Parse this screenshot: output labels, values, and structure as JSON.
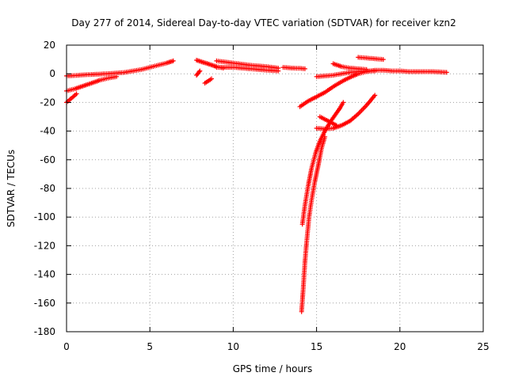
{
  "chart_data": {
    "type": "scatter",
    "title": "Day 277 of 2014, Sidereal Day-to-day VTEC variation (SDTVAR) for receiver kzn2",
    "xlabel": "GPS time / hours",
    "ylabel": "SDTVAR / TECUs",
    "xlim": [
      0,
      25
    ],
    "ylim": [
      -180,
      20
    ],
    "xticks": [
      0,
      5,
      10,
      15,
      20,
      25
    ],
    "xtick_labels": [
      "0",
      "5",
      "10",
      "15",
      "20",
      "25"
    ],
    "yticks": [
      20,
      0,
      -20,
      -40,
      -60,
      -80,
      -100,
      -120,
      -140,
      -160,
      -180
    ],
    "ytick_labels": [
      "20",
      "0",
      "-20",
      "-40",
      "-60",
      "-80",
      "-100",
      "-120",
      "-140",
      "-160",
      "-180"
    ],
    "grid": true,
    "marker": "+",
    "color": "#ff0000",
    "tracks": [
      {
        "x": [
          0.0,
          0.5,
          1.0,
          1.5,
          2.0,
          2.5,
          3.0,
          3.5,
          4.0,
          4.5,
          5.0,
          5.5,
          6.0,
          6.4
        ],
        "y": [
          -1.5,
          -1.2,
          -0.8,
          -0.5,
          -0.2,
          0.1,
          0.5,
          1.0,
          2.0,
          3.0,
          4.5,
          6.0,
          7.5,
          9.0
        ]
      },
      {
        "x": [
          0.0,
          0.5,
          1.0,
          1.5,
          2.0,
          2.5,
          3.0
        ],
        "y": [
          -12.0,
          -10.5,
          -8.5,
          -6.5,
          -4.5,
          -3.0,
          -2.0
        ]
      },
      {
        "x": [
          0.0,
          0.3,
          0.6
        ],
        "y": [
          -20.0,
          -17.0,
          -14.0
        ]
      },
      {
        "x": [
          7.8,
          8.2,
          8.6,
          9.0,
          9.4
        ],
        "y": [
          9.5,
          8.0,
          6.5,
          5.0,
          4.0
        ]
      },
      {
        "x": [
          7.8,
          8.0
        ],
        "y": [
          -1.0,
          2.0
        ]
      },
      {
        "x": [
          8.3,
          8.7
        ],
        "y": [
          -6.5,
          -3.5
        ]
      },
      {
        "x": [
          9.0,
          10.0,
          11.0,
          12.0,
          12.7
        ],
        "y": [
          9.0,
          7.5,
          6.0,
          5.0,
          4.0
        ]
      },
      {
        "x": [
          9.0,
          10.0,
          11.0,
          12.0,
          12.7
        ],
        "y": [
          4.5,
          4.5,
          3.5,
          2.5,
          2.0
        ]
      },
      {
        "x": [
          13.0,
          13.5,
          14.0,
          14.3
        ],
        "y": [
          4.5,
          4.0,
          3.8,
          3.5
        ]
      },
      {
        "x": [
          14.0,
          14.5,
          15.0,
          15.5,
          16.0,
          16.5,
          17.0,
          17.5,
          18.0,
          18.5,
          19.0,
          19.5,
          20.0,
          20.5,
          21.0,
          21.5,
          22.0,
          22.5,
          22.8
        ],
        "y": [
          -23.0,
          -19.0,
          -16.0,
          -13.0,
          -9.0,
          -5.5,
          -2.5,
          0.0,
          1.5,
          2.5,
          2.5,
          2.0,
          2.0,
          1.5,
          1.5,
          1.5,
          1.5,
          1.2,
          1.0
        ]
      },
      {
        "x": [
          15.0,
          15.5,
          16.0,
          16.5,
          17.0,
          17.5,
          18.0,
          18.5
        ],
        "y": [
          -2.0,
          -1.5,
          -1.0,
          0.0,
          1.0,
          1.5,
          2.0,
          2.0
        ]
      },
      {
        "x": [
          16.0,
          16.5,
          17.0,
          17.5,
          18.0
        ],
        "y": [
          7.0,
          5.0,
          4.0,
          3.5,
          3.0
        ]
      },
      {
        "x": [
          17.5,
          18.0,
          18.5,
          19.0
        ],
        "y": [
          11.5,
          11.0,
          10.5,
          10.0
        ]
      },
      {
        "x": [
          15.0,
          15.5,
          16.0,
          16.5,
          17.0,
          17.5,
          18.0,
          18.5
        ],
        "y": [
          -38.0,
          -38.5,
          -38.0,
          -36.0,
          -33.0,
          -28.0,
          -22.0,
          -15.0
        ]
      },
      {
        "x": [
          15.2,
          15.7,
          16.2
        ],
        "y": [
          -30.0,
          -33.0,
          -36.0
        ]
      },
      {
        "x": [
          14.15,
          14.3,
          14.5,
          14.7,
          14.95,
          15.2,
          15.5,
          15.8,
          16.1,
          16.4,
          16.6
        ],
        "y": [
          -105.0,
          -92.0,
          -78.0,
          -66.0,
          -55.0,
          -47.0,
          -40.0,
          -34.0,
          -29.0,
          -24.0,
          -20.0
        ]
      },
      {
        "x": [
          14.1,
          14.2,
          14.3,
          14.4,
          14.55,
          14.7,
          14.9,
          15.1,
          15.3,
          15.5
        ],
        "y": [
          -166.0,
          -150.0,
          -132.0,
          -118.0,
          -100.0,
          -88.0,
          -75.0,
          -64.0,
          -52.0,
          -44.0
        ]
      }
    ]
  }
}
